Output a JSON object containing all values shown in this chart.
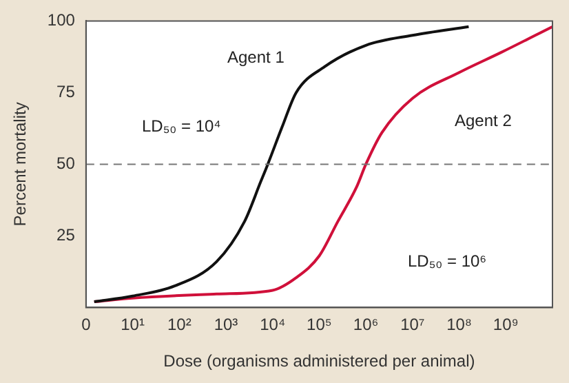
{
  "chart_data": {
    "type": "line",
    "xlabel": "Dose (organisms administered per animal)",
    "ylabel": "Percent mortality",
    "log": "x",
    "xlim": [
      0,
      10000000000
    ],
    "xticks": [
      0,
      {
        "value": 10,
        "label": "10¹"
      },
      {
        "value": 100,
        "label": "10²"
      },
      {
        "value": 1000,
        "label": "10³"
      },
      {
        "value": 10000,
        "label": "10⁴"
      },
      {
        "value": 100000,
        "label": "10⁵"
      },
      {
        "value": 1000000,
        "label": "10⁶"
      },
      {
        "value": 10000000,
        "label": "10⁷"
      },
      {
        "value": 100000000,
        "label": "10⁸"
      },
      {
        "value": 1000000000,
        "label": "10⁹"
      }
    ],
    "ylim": [
      0,
      100
    ],
    "yticks": [
      25,
      50,
      75,
      100
    ],
    "grid": false,
    "legend": false,
    "series": [
      {
        "name": "Agent 1",
        "color": "#111111",
        "x": [
          1.5,
          10,
          79,
          630,
          2500,
          5600,
          7900,
          16000,
          32000,
          130000,
          1000000,
          10000000,
          160000000
        ],
        "values": [
          2,
          4,
          7.5,
          16,
          30,
          44,
          50,
          63,
          75,
          84,
          91.5,
          95,
          98
        ]
      },
      {
        "name": "Agent 2",
        "color": "#d0103a",
        "x": [
          1.5,
          10,
          630,
          10000,
          32000,
          100000,
          250000,
          630000,
          1000000,
          2200000,
          10000000,
          100000000,
          790000000,
          10000000000
        ],
        "values": [
          2,
          3.3,
          4.7,
          6,
          10.4,
          18,
          30,
          42,
          50,
          61,
          73,
          82,
          89,
          98
        ]
      }
    ],
    "ref_lines": [
      {
        "axis": "y",
        "value": 50,
        "color": "#777777",
        "line_style": "dashed"
      }
    ],
    "annotations": [
      "LD₅₀ = 10⁴",
      "LD₅₀ = 10⁶"
    ]
  }
}
